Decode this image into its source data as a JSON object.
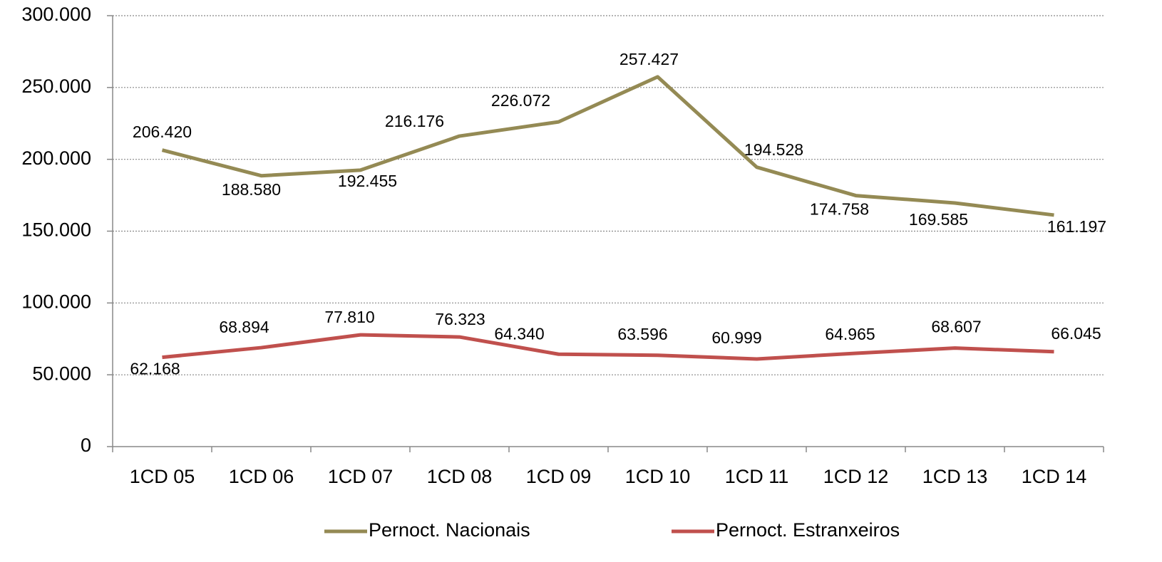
{
  "chart_data": {
    "type": "line",
    "categories": [
      "1CD 05",
      "1CD 06",
      "1CD 07",
      "1CD 08",
      "1CD 09",
      "1CD 10",
      "1CD 11",
      "1CD 12",
      "1CD 13",
      "1CD 14"
    ],
    "series": [
      {
        "name": "Pernoct. Nacionais",
        "color": "#948a54",
        "values": [
          206420,
          188580,
          192455,
          216176,
          226072,
          257427,
          194528,
          174758,
          169585,
          161197
        ],
        "value_labels": [
          "206.420",
          "188.580",
          "192.455",
          "216.176",
          "226.072",
          "257.427",
          "194.528",
          "174.758",
          "169.585",
          "161.197"
        ]
      },
      {
        "name": "Pernoct. Estranxeiros",
        "color": "#c0504d",
        "values": [
          62168,
          68894,
          77810,
          76323,
          64340,
          63596,
          60999,
          64965,
          68607,
          66045
        ],
        "value_labels": [
          "62.168",
          "68.894",
          "77.810",
          "76.323",
          "64.340",
          "63.596",
          "60.999",
          "64.965",
          "68.607",
          "66.045"
        ]
      }
    ],
    "ylim": [
      0,
      300000
    ],
    "yticks": [
      0,
      {
        "value": 50000,
        "label": "50.000"
      },
      {
        "value": 100000,
        "label": "100.000"
      },
      {
        "value": 150000,
        "label": "150.000"
      },
      {
        "value": 200000,
        "label": "200.000"
      },
      {
        "value": 250000,
        "label": "250.000"
      },
      {
        "value": 300000,
        "label": "300.000"
      }
    ],
    "grid": true,
    "legend": "bottom"
  }
}
